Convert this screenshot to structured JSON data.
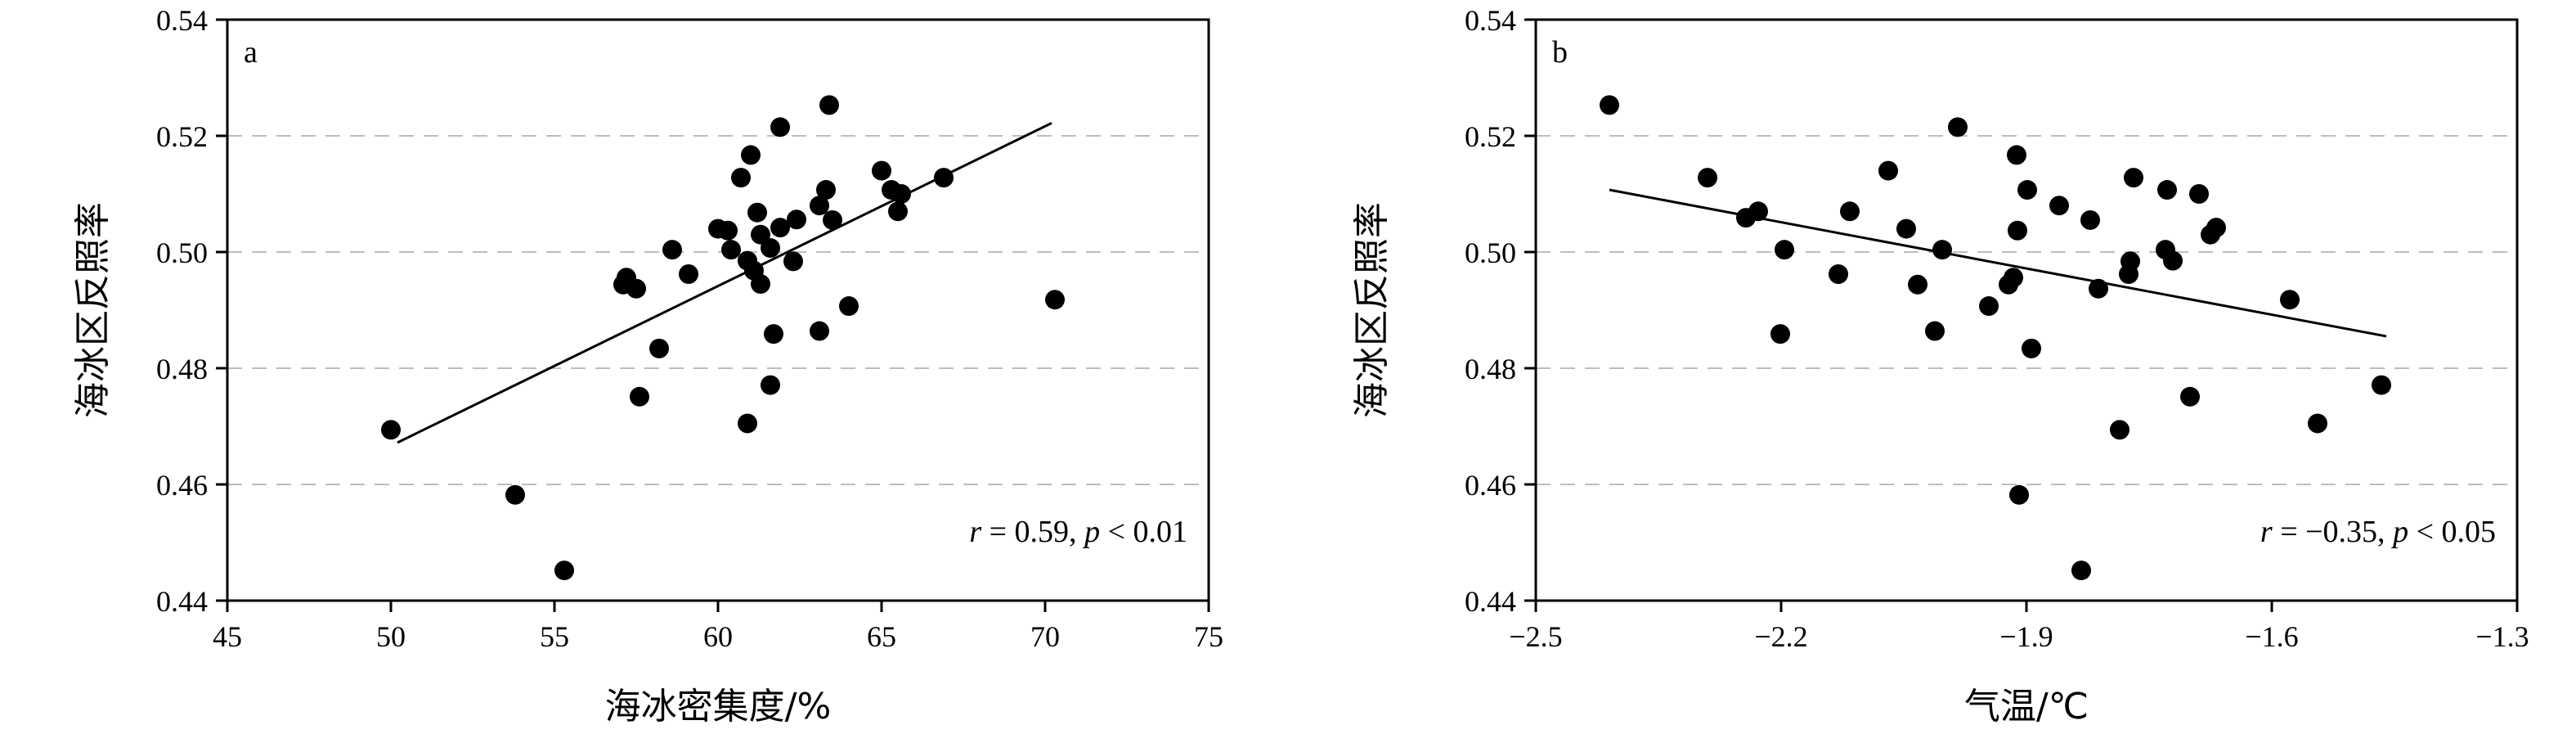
{
  "chart_data": [
    {
      "type": "scatter",
      "panel_label": "a",
      "xlabel": "海冰密集度/%",
      "ylabel": "海冰区反照率",
      "xlim": [
        45,
        75
      ],
      "ylim": [
        0.44,
        0.54
      ],
      "xticks": [
        "45",
        "50",
        "55",
        "60",
        "65",
        "70",
        "75"
      ],
      "yticks": [
        "0.44",
        "0.46",
        "0.48",
        "0.50",
        "0.52",
        "0.54"
      ],
      "grid": "horizontal dashed",
      "annotation": {
        "r_var": "r",
        "r_text": " = 0.59, ",
        "p_var": "p",
        "p_text": " < 0.01"
      },
      "fit_line": {
        "x": [
          50.2,
          70.2
        ],
        "y": [
          0.4672,
          0.5222
        ]
      },
      "points": [
        {
          "x": 50.0,
          "y": 0.4694
        },
        {
          "x": 53.8,
          "y": 0.4582
        },
        {
          "x": 55.3,
          "y": 0.4452
        },
        {
          "x": 57.1,
          "y": 0.4944
        },
        {
          "x": 57.2,
          "y": 0.4956
        },
        {
          "x": 57.5,
          "y": 0.4937
        },
        {
          "x": 57.6,
          "y": 0.4751
        },
        {
          "x": 58.2,
          "y": 0.4834
        },
        {
          "x": 58.6,
          "y": 0.5004
        },
        {
          "x": 59.1,
          "y": 0.4962
        },
        {
          "x": 60.0,
          "y": 0.504
        },
        {
          "x": 60.3,
          "y": 0.5037
        },
        {
          "x": 60.4,
          "y": 0.5004
        },
        {
          "x": 60.7,
          "y": 0.5128
        },
        {
          "x": 60.9,
          "y": 0.4985
        },
        {
          "x": 60.9,
          "y": 0.4705
        },
        {
          "x": 61.0,
          "y": 0.5167
        },
        {
          "x": 61.1,
          "y": 0.4968
        },
        {
          "x": 61.2,
          "y": 0.5068
        },
        {
          "x": 61.3,
          "y": 0.503
        },
        {
          "x": 61.3,
          "y": 0.4945
        },
        {
          "x": 61.6,
          "y": 0.5007
        },
        {
          "x": 61.6,
          "y": 0.4771
        },
        {
          "x": 61.7,
          "y": 0.4859
        },
        {
          "x": 61.9,
          "y": 0.5215
        },
        {
          "x": 61.9,
          "y": 0.5042
        },
        {
          "x": 62.3,
          "y": 0.4984
        },
        {
          "x": 62.4,
          "y": 0.5056
        },
        {
          "x": 63.1,
          "y": 0.508
        },
        {
          "x": 63.1,
          "y": 0.4864
        },
        {
          "x": 63.3,
          "y": 0.5107
        },
        {
          "x": 63.4,
          "y": 0.5253
        },
        {
          "x": 63.5,
          "y": 0.5055
        },
        {
          "x": 64.0,
          "y": 0.4907
        },
        {
          "x": 65.0,
          "y": 0.514
        },
        {
          "x": 65.3,
          "y": 0.5107
        },
        {
          "x": 65.5,
          "y": 0.507
        },
        {
          "x": 65.6,
          "y": 0.51
        },
        {
          "x": 66.9,
          "y": 0.5128
        },
        {
          "x": 70.3,
          "y": 0.4918
        }
      ]
    },
    {
      "type": "scatter",
      "panel_label": "b",
      "xlabel": "气温/℃",
      "ylabel": "海冰区反照率",
      "xlim": [
        -2.5,
        -1.3
      ],
      "ylim": [
        0.44,
        0.54
      ],
      "xticks": [
        "−2.5",
        "−2.2",
        "−1.9",
        "−1.6",
        "−1.3"
      ],
      "yticks": [
        "0.44",
        "0.46",
        "0.48",
        "0.50",
        "0.52",
        "0.54"
      ],
      "grid": "horizontal dashed",
      "annotation": {
        "r_var": "r",
        "r_text": " = −0.35, ",
        "p_var": "p",
        "p_text": " < 0.05"
      },
      "fit_line": {
        "x": [
          -2.41,
          -1.46
        ],
        "y": [
          0.5107,
          0.4855
        ]
      },
      "points": [
        {
          "x": -2.41,
          "y": 0.5253
        },
        {
          "x": -2.29,
          "y": 0.5128
        },
        {
          "x": -2.243,
          "y": 0.5059
        },
        {
          "x": -2.228,
          "y": 0.507
        },
        {
          "x": -2.201,
          "y": 0.4859
        },
        {
          "x": -2.196,
          "y": 0.5004
        },
        {
          "x": -2.13,
          "y": 0.4962
        },
        {
          "x": -2.116,
          "y": 0.507
        },
        {
          "x": -2.069,
          "y": 0.514
        },
        {
          "x": -2.047,
          "y": 0.504
        },
        {
          "x": -2.033,
          "y": 0.4944
        },
        {
          "x": -2.012,
          "y": 0.4864
        },
        {
          "x": -2.003,
          "y": 0.5004
        },
        {
          "x": -1.984,
          "y": 0.5215
        },
        {
          "x": -1.946,
          "y": 0.4907
        },
        {
          "x": -1.922,
          "y": 0.4944
        },
        {
          "x": -1.916,
          "y": 0.4956
        },
        {
          "x": -1.912,
          "y": 0.5167
        },
        {
          "x": -1.911,
          "y": 0.5037
        },
        {
          "x": -1.909,
          "y": 0.4582
        },
        {
          "x": -1.899,
          "y": 0.5107
        },
        {
          "x": -1.894,
          "y": 0.4834
        },
        {
          "x": -1.86,
          "y": 0.508
        },
        {
          "x": -1.833,
          "y": 0.4452
        },
        {
          "x": -1.822,
          "y": 0.5055
        },
        {
          "x": -1.812,
          "y": 0.4937
        },
        {
          "x": -1.786,
          "y": 0.4694
        },
        {
          "x": -1.775,
          "y": 0.4962
        },
        {
          "x": -1.773,
          "y": 0.4984
        },
        {
          "x": -1.769,
          "y": 0.5128
        },
        {
          "x": -1.73,
          "y": 0.5004
        },
        {
          "x": -1.728,
          "y": 0.5107
        },
        {
          "x": -1.721,
          "y": 0.4985
        },
        {
          "x": -1.7,
          "y": 0.4751
        },
        {
          "x": -1.689,
          "y": 0.51
        },
        {
          "x": -1.675,
          "y": 0.503
        },
        {
          "x": -1.668,
          "y": 0.5042
        },
        {
          "x": -1.578,
          "y": 0.4918
        },
        {
          "x": -1.544,
          "y": 0.4705
        },
        {
          "x": -1.466,
          "y": 0.4771
        }
      ]
    }
  ]
}
